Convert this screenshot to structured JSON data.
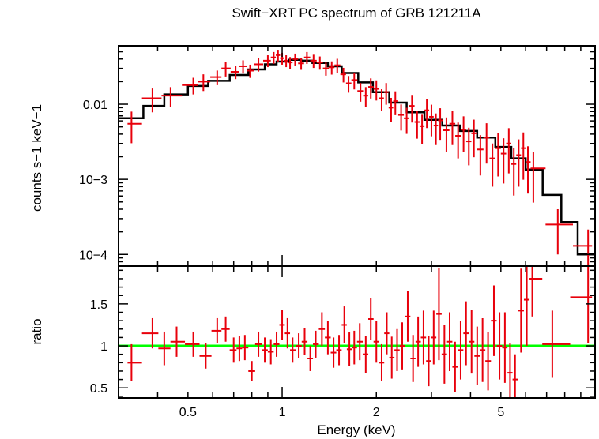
{
  "chart_data": [
    {
      "type": "scatter",
      "title": "Swift−XRT PC spectrum of GRB 121211A",
      "ylabel": "counts s−1 keV−1",
      "xscale": "log",
      "yscale": "log",
      "xlim": [
        0.3,
        10
      ],
      "ylim": [
        7e-05,
        0.06
      ],
      "y_ticks": [
        {
          "value": 0.01,
          "label": "0.01"
        },
        {
          "value": 0.001,
          "label": "10−3"
        },
        {
          "value": 0.0001,
          "label": "10−4"
        }
      ],
      "colors": {
        "data": "#e8000b",
        "model": "#000000"
      },
      "model": {
        "name": "model",
        "edges": [
          0.3,
          0.36,
          0.42,
          0.5,
          0.58,
          0.68,
          0.78,
          0.88,
          0.96,
          1.05,
          1.15,
          1.25,
          1.4,
          1.55,
          1.75,
          1.95,
          2.2,
          2.5,
          2.85,
          3.25,
          3.7,
          4.2,
          4.8,
          5.4,
          6.0,
          6.8,
          7.8,
          8.8,
          10.0
        ],
        "values": [
          0.0065,
          0.0095,
          0.0135,
          0.0175,
          0.0205,
          0.0245,
          0.029,
          0.034,
          0.037,
          0.039,
          0.038,
          0.0355,
          0.032,
          0.026,
          0.0195,
          0.0145,
          0.0105,
          0.0078,
          0.0062,
          0.0052,
          0.0044,
          0.0036,
          0.0027,
          0.0019,
          0.00135,
          0.00062,
          0.00027,
          0.0001
        ]
      },
      "series": [
        {
          "name": "data",
          "x": [
            0.33,
            0.385,
            0.44,
            0.52,
            0.56,
            0.62,
            0.66,
            0.71,
            0.75,
            0.79,
            0.84,
            0.9,
            0.94,
            0.97,
            1.0,
            1.03,
            1.06,
            1.1,
            1.15,
            1.2,
            1.26,
            1.32,
            1.38,
            1.44,
            1.5,
            1.57,
            1.63,
            1.7,
            1.78,
            1.85,
            1.92,
            2.0,
            2.08,
            2.15,
            2.23,
            2.3,
            2.4,
            2.5,
            2.6,
            2.7,
            2.8,
            2.9,
            3.0,
            3.1,
            3.2,
            3.35,
            3.5,
            3.65,
            3.8,
            3.95,
            4.1,
            4.3,
            4.5,
            4.7,
            4.9,
            5.1,
            5.3,
            5.5,
            5.7,
            5.9,
            6.1,
            6.35,
            7.6,
            9.5
          ],
          "y": [
            0.0055,
            0.012,
            0.013,
            0.018,
            0.02,
            0.023,
            0.03,
            0.027,
            0.032,
            0.028,
            0.034,
            0.038,
            0.042,
            0.045,
            0.041,
            0.038,
            0.036,
            0.04,
            0.035,
            0.042,
            0.038,
            0.036,
            0.03,
            0.031,
            0.033,
            0.025,
            0.019,
            0.021,
            0.015,
            0.013,
            0.017,
            0.016,
            0.012,
            0.0145,
            0.009,
            0.011,
            0.0072,
            0.0065,
            0.0095,
            0.0058,
            0.0051,
            0.0083,
            0.0068,
            0.0052,
            0.0061,
            0.0045,
            0.0055,
            0.0038,
            0.0046,
            0.0032,
            0.0041,
            0.0025,
            0.0036,
            0.0019,
            0.0026,
            0.0022,
            0.003,
            0.0016,
            0.0021,
            0.0026,
            0.0017,
            0.0014,
            0.00025,
            0.00013
          ],
          "yerr_frac": [
            0.45,
            0.35,
            0.3,
            0.25,
            0.25,
            0.22,
            0.22,
            0.2,
            0.2,
            0.2,
            0.2,
            0.18,
            0.18,
            0.18,
            0.18,
            0.18,
            0.18,
            0.18,
            0.18,
            0.18,
            0.2,
            0.2,
            0.2,
            0.2,
            0.22,
            0.22,
            0.25,
            0.25,
            0.28,
            0.3,
            0.3,
            0.3,
            0.32,
            0.32,
            0.35,
            0.35,
            0.38,
            0.38,
            0.4,
            0.4,
            0.42,
            0.42,
            0.45,
            0.45,
            0.45,
            0.48,
            0.48,
            0.5,
            0.5,
            0.52,
            0.52,
            0.55,
            0.55,
            0.58,
            0.58,
            0.6,
            0.6,
            0.62,
            0.62,
            0.62,
            0.62,
            0.65,
            0.6,
            0.65
          ]
        }
      ]
    },
    {
      "type": "scatter",
      "ylabel": "ratio",
      "xlabel": "Energy (keV)",
      "xscale": "log",
      "xlim": [
        0.3,
        10
      ],
      "ylim": [
        0.38,
        1.95
      ],
      "x_ticks": [
        {
          "value": 0.5,
          "label": "0.5"
        },
        {
          "value": 1,
          "label": "1"
        },
        {
          "value": 2,
          "label": "2"
        },
        {
          "value": 5,
          "label": "5"
        }
      ],
      "y_ticks": [
        {
          "value": 0.5,
          "label": "0.5"
        },
        {
          "value": 1,
          "label": "1"
        },
        {
          "value": 1.5,
          "label": "1.5"
        }
      ],
      "reference_line": 1,
      "colors": {
        "data": "#e8000b",
        "reference": "#00ff00"
      },
      "series": [
        {
          "name": "ratio",
          "x": [
            0.33,
            0.385,
            0.42,
            0.46,
            0.52,
            0.57,
            0.62,
            0.66,
            0.7,
            0.73,
            0.76,
            0.8,
            0.84,
            0.88,
            0.92,
            0.96,
            1.0,
            1.04,
            1.08,
            1.13,
            1.18,
            1.23,
            1.28,
            1.34,
            1.4,
            1.46,
            1.52,
            1.58,
            1.64,
            1.7,
            1.77,
            1.85,
            1.92,
            2.0,
            2.08,
            2.16,
            2.24,
            2.33,
            2.42,
            2.52,
            2.62,
            2.72,
            2.83,
            2.94,
            3.05,
            3.17,
            3.3,
            3.43,
            3.57,
            3.72,
            3.87,
            4.03,
            4.2,
            4.37,
            4.55,
            4.75,
            4.95,
            5.15,
            5.35,
            5.55,
            5.8,
            6.05,
            6.3,
            7.3,
            9.5
          ],
          "y": [
            0.8,
            1.15,
            0.97,
            1.05,
            1.02,
            0.88,
            1.18,
            1.2,
            0.95,
            0.97,
            0.98,
            0.7,
            1.02,
            0.95,
            0.93,
            1.02,
            1.25,
            1.15,
            0.95,
            1.0,
            1.05,
            0.85,
            1.02,
            1.2,
            1.1,
            0.92,
            0.95,
            1.25,
            0.96,
            0.98,
            1.05,
            0.9,
            1.32,
            1.05,
            0.8,
            1.15,
            0.86,
            0.95,
            1.0,
            1.35,
            0.85,
            1.05,
            1.1,
            0.82,
            1.1,
            1.38,
            0.9,
            1.05,
            0.75,
            0.95,
            1.15,
            1.05,
            0.88,
            0.95,
            0.82,
            1.3,
            1.0,
            0.98,
            0.68,
            0.6,
            1.42,
            1.55,
            1.8,
            1.02,
            1.58
          ],
          "yerr": [
            0.22,
            0.18,
            0.2,
            0.18,
            0.15,
            0.15,
            0.15,
            0.15,
            0.15,
            0.15,
            0.15,
            0.12,
            0.15,
            0.15,
            0.15,
            0.15,
            0.18,
            0.18,
            0.15,
            0.15,
            0.16,
            0.15,
            0.16,
            0.2,
            0.2,
            0.18,
            0.18,
            0.22,
            0.2,
            0.2,
            0.22,
            0.22,
            0.25,
            0.25,
            0.22,
            0.25,
            0.25,
            0.25,
            0.28,
            0.3,
            0.28,
            0.3,
            0.32,
            0.3,
            0.32,
            0.55,
            0.35,
            0.35,
            0.3,
            0.35,
            0.38,
            0.38,
            0.35,
            0.38,
            0.35,
            0.42,
            0.4,
            0.42,
            0.35,
            0.3,
            0.5,
            0.55,
            0.45,
            0.4,
            0.55
          ]
        }
      ]
    }
  ]
}
